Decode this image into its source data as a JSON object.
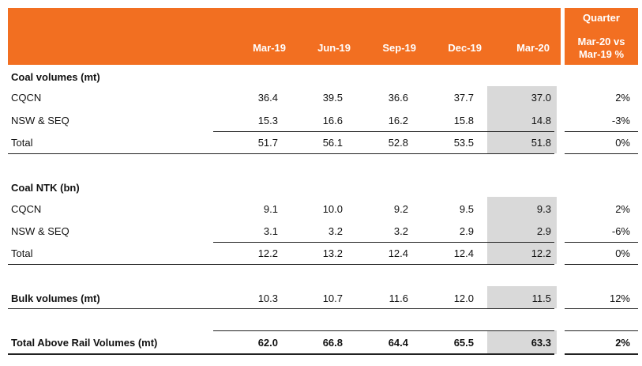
{
  "header": {
    "columns": [
      "Mar-19",
      "Jun-19",
      "Sep-19",
      "Dec-19",
      "Mar-20"
    ],
    "side_title": "Quarter",
    "side_sub_1": "Mar-20 vs",
    "side_sub_2": "Mar-19 %"
  },
  "sections": {
    "coal_volumes": {
      "title": "Coal volumes (mt)",
      "rows": [
        {
          "label": "CQCN",
          "values": [
            "36.4",
            "39.5",
            "36.6",
            "37.7",
            "37.0"
          ],
          "change": "2%"
        },
        {
          "label": "NSW & SEQ",
          "values": [
            "15.3",
            "16.6",
            "16.2",
            "15.8",
            "14.8"
          ],
          "change": "-3%"
        },
        {
          "label": "Total",
          "values": [
            "51.7",
            "56.1",
            "52.8",
            "53.5",
            "51.8"
          ],
          "change": "0%"
        }
      ]
    },
    "coal_ntk": {
      "title": "Coal NTK (bn)",
      "rows": [
        {
          "label": "CQCN",
          "values": [
            "9.1",
            "10.0",
            "9.2",
            "9.5",
            "9.3"
          ],
          "change": "2%"
        },
        {
          "label": "NSW & SEQ",
          "values": [
            "3.1",
            "3.2",
            "3.2",
            "2.9",
            "2.9"
          ],
          "change": "-6%"
        },
        {
          "label": "Total",
          "values": [
            "12.2",
            "13.2",
            "12.4",
            "12.4",
            "12.2"
          ],
          "change": "0%"
        }
      ]
    },
    "bulk": {
      "label": "Bulk volumes (mt)",
      "values": [
        "10.3",
        "10.7",
        "11.6",
        "12.0",
        "11.5"
      ],
      "change": "12%"
    },
    "total_above_rail": {
      "label": "Total Above Rail Volumes (mt)",
      "values": [
        "62.0",
        "66.8",
        "64.4",
        "65.5",
        "63.3"
      ],
      "change": "2%"
    }
  },
  "colors": {
    "header_orange": "#f26f21",
    "highlight_grey": "#d9d9d9"
  }
}
